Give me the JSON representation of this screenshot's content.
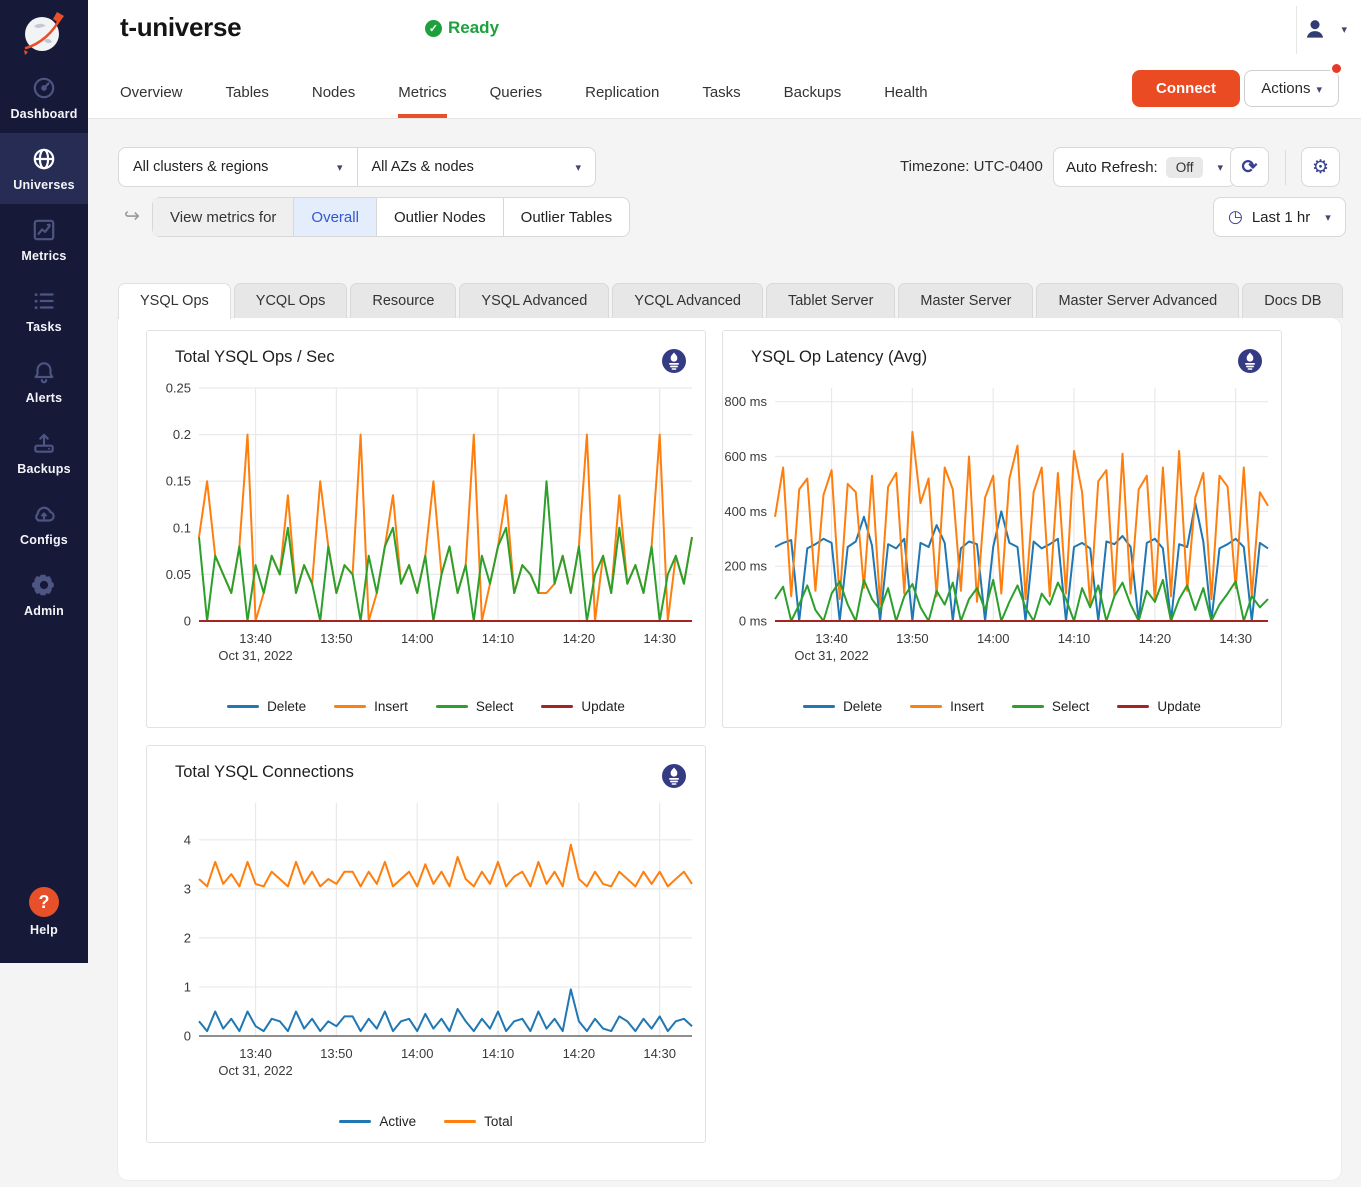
{
  "colors": {
    "accent": "#ea4b22",
    "sidebar_bg": "#161937",
    "sidebar_active": "#272c55",
    "ready_green": "#1ea13c",
    "scope_selected_bg": "#e4edfb",
    "scope_selected_text": "#3457cf",
    "icon_navy": "#39418f",
    "series_blue": "#1f77b4",
    "series_orange": "#ff7f0e",
    "series_green": "#2ca02c",
    "series_red": "#a52422"
  },
  "sidebar": {
    "items": [
      {
        "label": "Dashboard"
      },
      {
        "label": "Universes"
      },
      {
        "label": "Metrics"
      },
      {
        "label": "Tasks"
      },
      {
        "label": "Alerts"
      },
      {
        "label": "Backups"
      },
      {
        "label": "Configs"
      },
      {
        "label": "Admin"
      }
    ],
    "active": "Universes",
    "help_label": "Help"
  },
  "header": {
    "title": "t-universe",
    "status": "Ready",
    "nav_tabs": [
      "Overview",
      "Tables",
      "Nodes",
      "Metrics",
      "Queries",
      "Replication",
      "Tasks",
      "Backups",
      "Health"
    ],
    "active_nav": "Metrics",
    "connect_label": "Connect",
    "actions_label": "Actions"
  },
  "filters": {
    "clusters_dropdown": "All clusters & regions",
    "az_dropdown": "All AZs & nodes",
    "timezone": "Timezone: UTC-0400",
    "auto_refresh_label": "Auto Refresh:",
    "auto_refresh_value": "Off",
    "time_range": "Last 1 hr"
  },
  "scope": {
    "label": "View metrics for",
    "options": [
      "Overall",
      "Outlier Nodes",
      "Outlier Tables"
    ],
    "selected": "Overall"
  },
  "metric_tabs": {
    "items": [
      "YSQL Ops",
      "YCQL Ops",
      "Resource",
      "YSQL Advanced",
      "YCQL Advanced",
      "Tablet Server",
      "Master Server",
      "Master Server Advanced",
      "Docs DB"
    ],
    "active": "YSQL Ops"
  },
  "chart_data": [
    {
      "type": "line",
      "title": "Total YSQL Ops / Sec",
      "x_range": [
        0,
        61
      ],
      "x_ticks": [
        {
          "v": 7,
          "label": "13:40"
        },
        {
          "v": 17,
          "label": "13:50"
        },
        {
          "v": 27,
          "label": "14:00"
        },
        {
          "v": 37,
          "label": "14:10"
        },
        {
          "v": 47,
          "label": "14:20"
        },
        {
          "v": 57,
          "label": "14:30"
        }
      ],
      "x_sub_label": "Oct 31, 2022",
      "y_min": 0,
      "y_max": 0.25,
      "y_ticks": [
        {
          "v": 0.25,
          "label": "0.25"
        },
        {
          "v": 0.2,
          "label": "0.2"
        },
        {
          "v": 0.15,
          "label": "0.15"
        },
        {
          "v": 0.1,
          "label": "0.1"
        },
        {
          "v": 0.05,
          "label": "0.05"
        },
        {
          "v": 0,
          "label": "0"
        }
      ],
      "grid": true,
      "legend_position": "bottom",
      "series": [
        {
          "name": "Delete",
          "color": "#1f77b4",
          "values": [
            0,
            0,
            0,
            0,
            0,
            0,
            0,
            0,
            0,
            0,
            0,
            0,
            0,
            0,
            0,
            0,
            0,
            0,
            0,
            0,
            0,
            0,
            0,
            0,
            0,
            0,
            0,
            0,
            0,
            0,
            0,
            0,
            0,
            0,
            0,
            0,
            0,
            0,
            0,
            0,
            0,
            0,
            0,
            0,
            0,
            0,
            0,
            0,
            0,
            0,
            0,
            0,
            0,
            0,
            0,
            0,
            0,
            0,
            0,
            0,
            0,
            0
          ]
        },
        {
          "name": "Insert",
          "color": "#ff7f0e",
          "values": [
            0.09,
            0.15,
            0.07,
            0.05,
            0.03,
            0.08,
            0.2,
            0,
            0.03,
            0.07,
            0.05,
            0.135,
            0.03,
            0.06,
            0.04,
            0.15,
            0.08,
            0.03,
            0.06,
            0.05,
            0.2,
            0,
            0.03,
            0.08,
            0.135,
            0.04,
            0.06,
            0.03,
            0.07,
            0.15,
            0.05,
            0.08,
            0.03,
            0.06,
            0.2,
            0,
            0.04,
            0.08,
            0.135,
            0.03,
            0.06,
            0.05,
            0.03,
            0.03,
            0.04,
            0.07,
            0.03,
            0.08,
            0.2,
            0,
            0.07,
            0.03,
            0.135,
            0.04,
            0.06,
            0.03,
            0.08,
            0.2,
            0,
            0.07,
            0.04,
            0.09
          ]
        },
        {
          "name": "Select",
          "color": "#2ca02c",
          "values": [
            0.09,
            0,
            0.07,
            0.05,
            0.03,
            0.08,
            0,
            0.06,
            0.03,
            0.07,
            0.05,
            0.1,
            0.03,
            0.06,
            0.04,
            0,
            0.08,
            0.03,
            0.06,
            0.05,
            0,
            0.07,
            0.03,
            0.08,
            0.1,
            0.04,
            0.06,
            0.03,
            0.07,
            0,
            0.05,
            0.08,
            0.03,
            0.06,
            0,
            0.07,
            0.04,
            0.08,
            0.1,
            0.03,
            0.06,
            0.05,
            0.03,
            0.15,
            0.04,
            0.07,
            0.03,
            0.08,
            0,
            0.05,
            0.07,
            0.03,
            0.1,
            0.04,
            0.06,
            0.03,
            0.08,
            0,
            0.05,
            0.07,
            0.04,
            0.09
          ]
        },
        {
          "name": "Update",
          "color": "#a52422",
          "values": [
            0,
            0,
            0,
            0,
            0,
            0,
            0,
            0,
            0,
            0,
            0,
            0,
            0,
            0,
            0,
            0,
            0,
            0,
            0,
            0,
            0,
            0,
            0,
            0,
            0,
            0,
            0,
            0,
            0,
            0,
            0,
            0,
            0,
            0,
            0,
            0,
            0,
            0,
            0,
            0,
            0,
            0,
            0,
            0,
            0,
            0,
            0,
            0,
            0,
            0,
            0,
            0,
            0,
            0,
            0,
            0,
            0,
            0,
            0,
            0,
            0,
            0
          ]
        }
      ]
    },
    {
      "type": "line",
      "title": "YSQL Op Latency (Avg)",
      "x_range": [
        0,
        61
      ],
      "x_ticks": [
        {
          "v": 7,
          "label": "13:40"
        },
        {
          "v": 17,
          "label": "13:50"
        },
        {
          "v": 27,
          "label": "14:00"
        },
        {
          "v": 37,
          "label": "14:10"
        },
        {
          "v": 47,
          "label": "14:20"
        },
        {
          "v": 57,
          "label": "14:30"
        }
      ],
      "x_sub_label": "Oct 31, 2022",
      "y_min": 0,
      "y_max": 850,
      "y_ticks": [
        {
          "v": 800,
          "label": "800 ms"
        },
        {
          "v": 600,
          "label": "600 ms"
        },
        {
          "v": 400,
          "label": "400 ms"
        },
        {
          "v": 200,
          "label": "200 ms"
        },
        {
          "v": 0,
          "label": "0 ms"
        }
      ],
      "grid": true,
      "legend_position": "bottom",
      "series": [
        {
          "name": "Delete",
          "color": "#1f77b4",
          "values": [
            270,
            285,
            295,
            0,
            265,
            280,
            300,
            285,
            0,
            270,
            290,
            380,
            275,
            0,
            280,
            265,
            300,
            0,
            285,
            270,
            350,
            285,
            0,
            265,
            290,
            280,
            0,
            270,
            400,
            285,
            270,
            0,
            290,
            265,
            280,
            300,
            0,
            270,
            285,
            265,
            0,
            290,
            280,
            310,
            270,
            0,
            285,
            300,
            265,
            0,
            280,
            270,
            430,
            290,
            0,
            265,
            280,
            300,
            270,
            0,
            285,
            265
          ]
        },
        {
          "name": "Insert",
          "color": "#ff7f0e",
          "values": [
            380,
            560,
            90,
            480,
            520,
            110,
            460,
            550,
            80,
            500,
            470,
            120,
            530,
            60,
            490,
            540,
            100,
            690,
            430,
            520,
            90,
            560,
            480,
            110,
            600,
            70,
            450,
            530,
            100,
            520,
            640,
            80,
            470,
            560,
            90,
            540,
            100,
            620,
            470,
            60,
            510,
            550,
            90,
            610,
            100,
            480,
            530,
            70,
            560,
            90,
            620,
            110,
            450,
            540,
            80,
            530,
            490,
            120,
            560,
            90,
            470,
            420
          ]
        },
        {
          "name": "Select",
          "color": "#2ca02c",
          "values": [
            80,
            125,
            0,
            60,
            130,
            40,
            0,
            100,
            145,
            60,
            0,
            150,
            80,
            40,
            120,
            0,
            90,
            135,
            50,
            0,
            110,
            60,
            140,
            0,
            80,
            120,
            40,
            150,
            0,
            70,
            130,
            50,
            0,
            100,
            60,
            140,
            80,
            0,
            120,
            50,
            130,
            0,
            90,
            140,
            60,
            0,
            110,
            70,
            150,
            0,
            80,
            130,
            40,
            120,
            0,
            60,
            100,
            145,
            0,
            90,
            50,
            80
          ]
        },
        {
          "name": "Update",
          "color": "#a52422",
          "values": [
            0,
            0,
            0,
            0,
            0,
            0,
            0,
            0,
            0,
            0,
            0,
            0,
            0,
            0,
            0,
            0,
            0,
            0,
            0,
            0,
            0,
            0,
            0,
            0,
            0,
            0,
            0,
            0,
            0,
            0,
            0,
            0,
            0,
            0,
            0,
            0,
            0,
            0,
            0,
            0,
            0,
            0,
            0,
            0,
            0,
            0,
            0,
            0,
            0,
            0,
            0,
            0,
            0,
            0,
            0,
            0,
            0,
            0,
            0,
            0,
            0,
            0
          ]
        }
      ]
    },
    {
      "type": "line",
      "title": "Total YSQL Connections",
      "x_range": [
        0,
        61
      ],
      "x_ticks": [
        {
          "v": 7,
          "label": "13:40"
        },
        {
          "v": 17,
          "label": "13:50"
        },
        {
          "v": 27,
          "label": "14:00"
        },
        {
          "v": 37,
          "label": "14:10"
        },
        {
          "v": 47,
          "label": "14:20"
        },
        {
          "v": 57,
          "label": "14:30"
        }
      ],
      "x_sub_label": "Oct 31, 2022",
      "y_min": 0,
      "y_max": 4.75,
      "y_ticks": [
        {
          "v": 4,
          "label": "4"
        },
        {
          "v": 3,
          "label": "3"
        },
        {
          "v": 2,
          "label": "2"
        },
        {
          "v": 1,
          "label": "1"
        },
        {
          "v": 0,
          "label": "0"
        }
      ],
      "grid": true,
      "legend_position": "bottom",
      "series": [
        {
          "name": "Active",
          "color": "#1f77b4",
          "values": [
            0.3,
            0.1,
            0.5,
            0.15,
            0.35,
            0.1,
            0.5,
            0.2,
            0.1,
            0.35,
            0.3,
            0.1,
            0.5,
            0.15,
            0.35,
            0.1,
            0.3,
            0.2,
            0.4,
            0.4,
            0.1,
            0.35,
            0.15,
            0.5,
            0.1,
            0.3,
            0.35,
            0.1,
            0.45,
            0.15,
            0.35,
            0.1,
            0.55,
            0.3,
            0.1,
            0.35,
            0.15,
            0.5,
            0.1,
            0.3,
            0.35,
            0.1,
            0.5,
            0.15,
            0.35,
            0.1,
            0.95,
            0.3,
            0.1,
            0.35,
            0.15,
            0.1,
            0.4,
            0.3,
            0.1,
            0.35,
            0.15,
            0.4,
            0.1,
            0.3,
            0.35,
            0.2
          ]
        },
        {
          "name": "Total",
          "color": "#ff7f0e",
          "values": [
            3.2,
            3.05,
            3.55,
            3.1,
            3.3,
            3.05,
            3.55,
            3.1,
            3.05,
            3.35,
            3.2,
            3.05,
            3.55,
            3.1,
            3.35,
            3.05,
            3.2,
            3.1,
            3.35,
            3.35,
            3.05,
            3.35,
            3.1,
            3.55,
            3.05,
            3.2,
            3.35,
            3.05,
            3.5,
            3.1,
            3.35,
            3.05,
            3.65,
            3.2,
            3.05,
            3.35,
            3.1,
            3.55,
            3.05,
            3.25,
            3.35,
            3.05,
            3.55,
            3.1,
            3.35,
            3.05,
            3.9,
            3.2,
            3.05,
            3.35,
            3.1,
            3.05,
            3.35,
            3.2,
            3.05,
            3.35,
            3.1,
            3.35,
            3.05,
            3.2,
            3.35,
            3.1
          ]
        }
      ]
    }
  ]
}
